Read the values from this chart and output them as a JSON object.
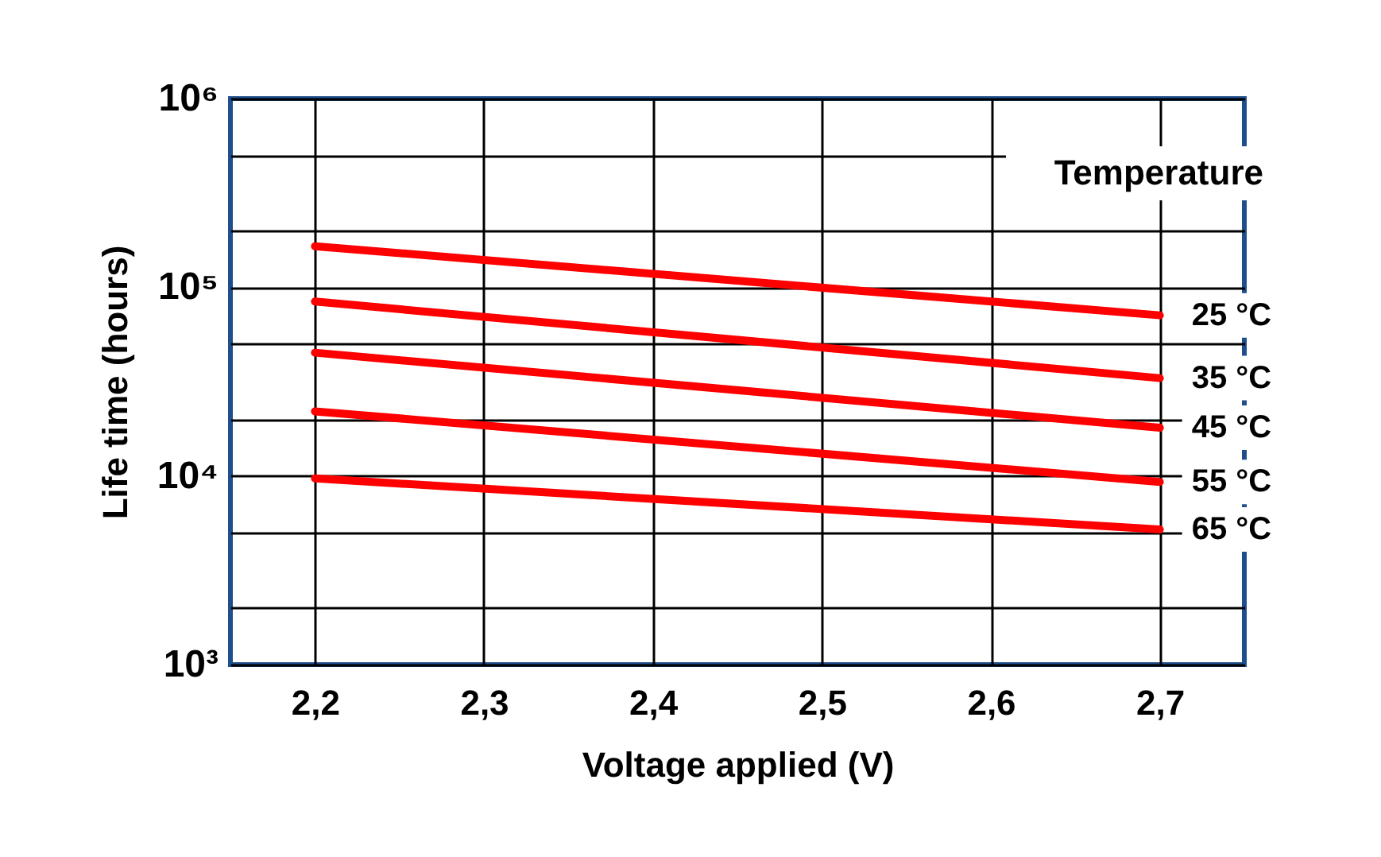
{
  "chart_data": {
    "type": "line",
    "xlabel": "Voltage applied (V)",
    "ylabel": "Life time (hours)",
    "legend_title": "Temperature",
    "log": true,
    "grid": true,
    "x": [
      2.2,
      2.7
    ],
    "xlim": [
      2.15,
      2.75
    ],
    "xticks": [
      {
        "value": 2.2,
        "label": "2,2"
      },
      {
        "value": 2.3,
        "label": "2,3"
      },
      {
        "value": 2.4,
        "label": "2,4"
      },
      {
        "value": 2.5,
        "label": "2,5"
      },
      {
        "value": 2.6,
        "label": "2,6"
      },
      {
        "value": 2.7,
        "label": "2,7"
      }
    ],
    "ylim": [
      1000,
      1000000
    ],
    "yticks": [
      {
        "value": 1000,
        "label": "10³"
      },
      {
        "value": 2000,
        "label": null
      },
      {
        "value": 5000,
        "label": null
      },
      {
        "value": 10000,
        "label": "10⁴"
      },
      {
        "value": 20000,
        "label": null
      },
      {
        "value": 50000,
        "label": null
      },
      {
        "value": 100000,
        "label": "10⁵"
      },
      {
        "value": 200000,
        "label": null
      },
      {
        "value": 500000,
        "label": null
      },
      {
        "value": 1000000,
        "label": "10⁶"
      }
    ],
    "series": [
      {
        "name": "25 °C",
        "color": "#ff0000",
        "values": [
          165000,
          71000
        ]
      },
      {
        "name": "35 °C",
        "color": "#ff0000",
        "values": [
          84000,
          33000
        ]
      },
      {
        "name": "45 °C",
        "color": "#ff0000",
        "values": [
          45000,
          18000
        ]
      },
      {
        "name": "55 °C",
        "color": "#ff0000",
        "values": [
          22000,
          9300
        ]
      },
      {
        "name": "65 °C",
        "color": "#ff0000",
        "values": [
          9700,
          5200
        ]
      }
    ]
  }
}
